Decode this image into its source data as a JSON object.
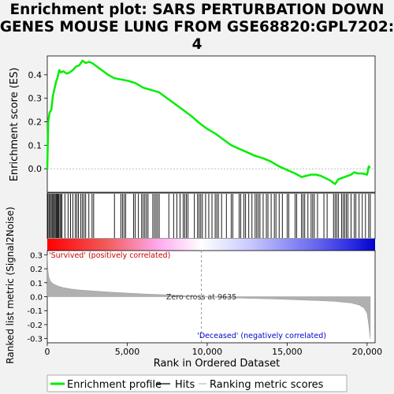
{
  "chart_data": {
    "type": "line",
    "title_lines": [
      "Enrichment plot: SARS PERTURBATION DOWN",
      "GENES MOUSE LUNG FROM GSE68820:GPL7202:",
      "4"
    ],
    "es_panel": {
      "ylabel": "Enrichment score (ES)",
      "yticks": [
        0.0,
        0.1,
        0.2,
        0.3,
        0.4
      ],
      "ylim": [
        -0.1,
        0.48
      ],
      "series_name": "Enrichment profile",
      "color": "#00ee00",
      "x": [
        0,
        60,
        150,
        250,
        350,
        450,
        550,
        650,
        750,
        850,
        1000,
        1200,
        1400,
        1600,
        1800,
        2000,
        2200,
        2400,
        2600,
        2800,
        3000,
        3400,
        3800,
        4200,
        4600,
        5000,
        5500,
        6000,
        6500,
        7000,
        7500,
        8000,
        8500,
        9000,
        9500,
        10000,
        10500,
        11000,
        11500,
        12000,
        12500,
        13000,
        13500,
        14000,
        14500,
        15000,
        15500,
        15900,
        16200,
        16500,
        16800,
        17100,
        17400,
        17700,
        18000,
        18200,
        18400,
        18600,
        18800,
        19000,
        19200,
        19400,
        19700,
        20000,
        20100,
        20200
      ],
      "y": [
        0.0,
        0.2,
        0.24,
        0.25,
        0.31,
        0.34,
        0.37,
        0.39,
        0.42,
        0.41,
        0.415,
        0.405,
        0.41,
        0.42,
        0.435,
        0.44,
        0.46,
        0.45,
        0.455,
        0.45,
        0.44,
        0.42,
        0.4,
        0.385,
        0.38,
        0.375,
        0.365,
        0.345,
        0.335,
        0.325,
        0.3,
        0.275,
        0.25,
        0.225,
        0.195,
        0.17,
        0.15,
        0.125,
        0.1,
        0.085,
        0.07,
        0.055,
        0.045,
        0.03,
        0.01,
        -0.005,
        -0.02,
        -0.035,
        -0.03,
        -0.025,
        -0.025,
        -0.03,
        -0.04,
        -0.05,
        -0.065,
        -0.045,
        -0.04,
        -0.035,
        -0.03,
        -0.025,
        -0.015,
        -0.02,
        -0.02,
        -0.025,
        0.01,
        0.005
      ]
    },
    "hits_panel": {
      "series_name": "Hits",
      "positions": [
        40,
        110,
        180,
        250,
        310,
        380,
        440,
        500,
        560,
        610,
        670,
        720,
        790,
        850,
        920,
        1100,
        1300,
        1450,
        1600,
        1750,
        1850,
        1950,
        2100,
        2200,
        2300,
        2400,
        2600,
        2800,
        2900,
        4200,
        4600,
        4700,
        4800,
        4900,
        5400,
        5500,
        5700,
        5900,
        6000,
        6100,
        6200,
        6300,
        6600,
        6700,
        6800,
        6900,
        7000,
        7600,
        7900,
        8100,
        8300,
        8500,
        8600,
        8700,
        8800,
        9200,
        9400,
        9500,
        9600,
        9700,
        9900,
        10100,
        10300,
        10500,
        10600,
        10700,
        10900,
        11200,
        11500,
        11600,
        12000,
        12100,
        12300,
        12400,
        12600,
        12800,
        13000,
        13100,
        13200,
        13300,
        13500,
        13700,
        13800,
        14000,
        14200,
        14300,
        14500,
        14700,
        15000,
        15100,
        15500,
        15600,
        15900,
        16000,
        16100,
        16300,
        16500,
        16600,
        16700,
        16900,
        17300,
        17500,
        17900,
        18000,
        18100,
        18200,
        18400,
        18500,
        18600,
        18700,
        18800,
        19000,
        19200,
        19300,
        19500,
        19700,
        19900,
        20100,
        20200
      ]
    },
    "metric_panel": {
      "ylabel": "Ranked list metric (Signal2Noise)",
      "yticks": [
        -0.3,
        -0.2,
        -0.1,
        0.0,
        0.1,
        0.2,
        0.3
      ],
      "ylim": [
        -0.33,
        0.33
      ],
      "series_name": "Ranking metric scores",
      "x": [
        0,
        50,
        100,
        200,
        400,
        700,
        1000,
        1500,
        2000,
        3000,
        4000,
        5000,
        6000,
        7000,
        8000,
        9000,
        9635,
        10000,
        11000,
        12000,
        13000,
        14000,
        15000,
        16000,
        17000,
        18000,
        19000,
        19500,
        19800,
        20000,
        20100,
        20200
      ],
      "y": [
        0.3,
        0.18,
        0.14,
        0.11,
        0.09,
        0.075,
        0.065,
        0.055,
        0.048,
        0.04,
        0.032,
        0.026,
        0.02,
        0.015,
        0.01,
        0.004,
        0.0,
        -0.002,
        -0.006,
        -0.01,
        -0.013,
        -0.016,
        -0.02,
        -0.024,
        -0.028,
        -0.034,
        -0.045,
        -0.06,
        -0.08,
        -0.12,
        -0.2,
        -0.3
      ],
      "pos_label": "'Survived' (positively correlated)",
      "neg_label": "'Deceased' (negatively correlated)",
      "zero_cross_label": "Zero cross at 9635",
      "zero_cross": 9635
    },
    "xlabel": "Rank in Ordered Dataset",
    "xticks": [
      0,
      5000,
      10000,
      15000,
      20000
    ],
    "xlim": [
      0,
      20500
    ],
    "legend": {
      "placement": "bottom",
      "entries": [
        "Enrichment profile",
        "Hits",
        "Ranking metric scores"
      ]
    }
  }
}
